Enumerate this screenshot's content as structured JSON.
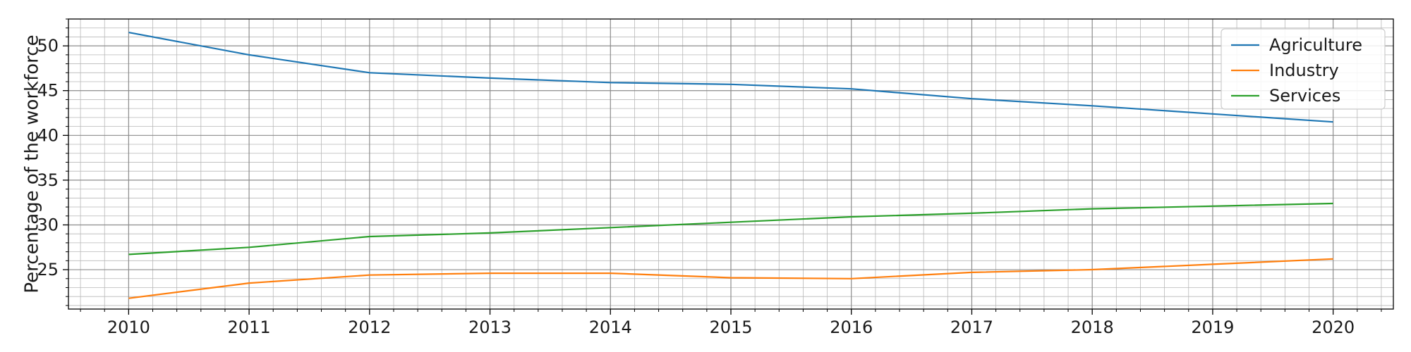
{
  "chart_data": {
    "type": "line",
    "title": "",
    "xlabel": "",
    "ylabel": "Percentage of the workforce",
    "x": [
      2010,
      2011,
      2012,
      2013,
      2014,
      2015,
      2016,
      2017,
      2018,
      2019,
      2020
    ],
    "xlim": [
      2009.5,
      2020.5
    ],
    "ylim": [
      20.6,
      53.0
    ],
    "yticks": [
      25,
      30,
      35,
      40,
      45,
      50
    ],
    "grid": true,
    "minor_grid": true,
    "legend_position": "top-right",
    "series": [
      {
        "name": "Agriculture",
        "color": "#1f77b4",
        "values": [
          51.5,
          49.0,
          47.0,
          46.4,
          45.9,
          45.7,
          45.2,
          44.1,
          43.3,
          42.4,
          41.5
        ]
      },
      {
        "name": "Industry",
        "color": "#ff7f0e",
        "values": [
          21.8,
          23.5,
          24.4,
          24.6,
          24.6,
          24.1,
          24.0,
          24.7,
          25.0,
          25.6,
          26.2
        ]
      },
      {
        "name": "Services",
        "color": "#2ca02c",
        "values": [
          26.7,
          27.5,
          28.7,
          29.1,
          29.7,
          30.3,
          30.9,
          31.3,
          31.8,
          32.1,
          32.4
        ]
      }
    ]
  }
}
